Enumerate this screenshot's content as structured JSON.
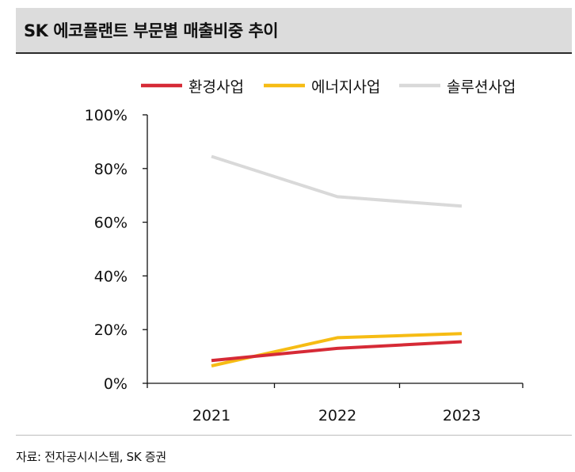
{
  "header": {
    "title": "SK 에코플랜트 부문별 매출비중 추이"
  },
  "source": "자료: 전자공시시스템, SK 증권",
  "chart_data": {
    "type": "line",
    "title": "SK 에코플랜트 부문별 매출비중 추이",
    "xlabel": "",
    "ylabel": "",
    "x": [
      "2021",
      "2022",
      "2023"
    ],
    "ylim": [
      0,
      100
    ],
    "yticks": [
      0,
      20,
      40,
      60,
      80,
      100
    ],
    "ytick_labels": [
      "0%",
      "20%",
      "40%",
      "60%",
      "80%",
      "100%"
    ],
    "grid": false,
    "legend": "top",
    "series": [
      {
        "name": "환경사업",
        "color": "#d62a36",
        "values": [
          8.5,
          13,
          15.5
        ]
      },
      {
        "name": "에너지사업",
        "color": "#f6bc14",
        "values": [
          6.5,
          17,
          18.5
        ]
      },
      {
        "name": "솔루션사업",
        "color": "#d9d9d9",
        "values": [
          84.5,
          69.5,
          66
        ]
      }
    ]
  }
}
